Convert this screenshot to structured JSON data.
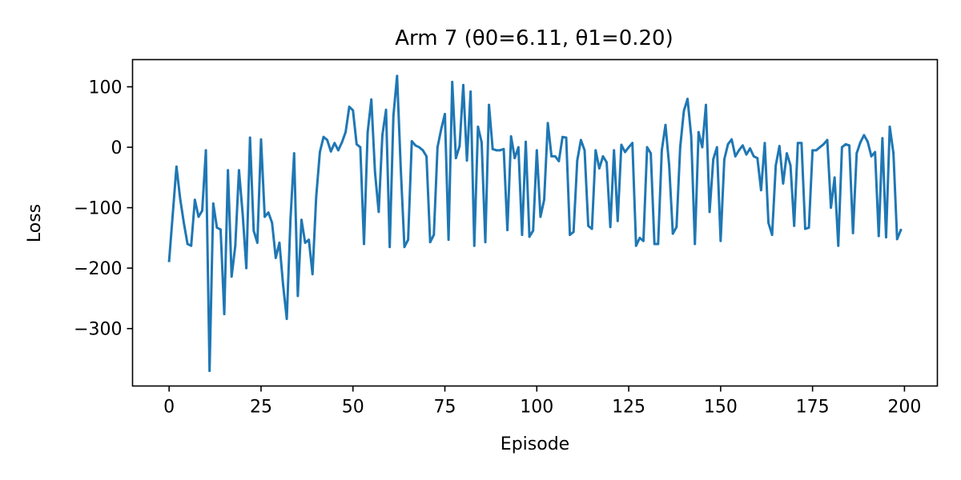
{
  "chart_data": {
    "type": "line",
    "title": "Arm 7 (θ0=6.11, θ1=0.20)",
    "xlabel": "Episode",
    "ylabel": "Loss",
    "xlim": [
      -9.95,
      208.95
    ],
    "ylim": [
      -395,
      145
    ],
    "xticks": [
      0,
      25,
      50,
      75,
      100,
      125,
      150,
      175,
      200
    ],
    "yticks": [
      100,
      0,
      -100,
      -200,
      -300
    ],
    "ytick_labels": [
      "100",
      "0",
      "−100",
      "−200",
      "−300"
    ],
    "grid": false,
    "color": "#1f77b4",
    "series": [
      {
        "x": [
          0,
          1,
          2,
          3,
          4,
          5,
          6,
          7,
          8,
          9,
          10,
          11,
          12,
          13,
          14,
          15,
          16,
          17,
          18,
          19,
          20,
          21,
          22,
          23,
          24,
          25,
          26,
          27,
          28,
          29,
          30,
          31,
          32,
          33,
          34,
          35,
          36,
          37,
          38,
          39,
          40,
          41,
          42,
          43,
          44,
          45,
          46,
          47,
          48,
          49,
          50,
          51,
          52,
          53,
          54,
          55,
          56,
          57,
          58,
          59,
          60,
          61,
          62,
          63,
          64,
          65,
          66,
          67,
          68,
          69,
          70,
          71,
          72,
          73,
          74,
          75,
          76,
          77,
          78,
          79,
          80,
          81,
          82,
          83,
          84,
          85,
          86,
          87,
          88,
          89,
          90,
          91,
          92,
          93,
          94,
          95,
          96,
          97,
          98,
          99,
          100,
          101,
          102,
          103,
          104,
          105,
          106,
          107,
          108,
          109,
          110,
          111,
          112,
          113,
          114,
          115,
          116,
          117,
          118,
          119,
          120,
          121,
          122,
          123,
          124,
          125,
          126,
          127,
          128,
          129,
          130,
          131,
          132,
          133,
          134,
          135,
          136,
          137,
          138,
          139,
          140,
          141,
          142,
          143,
          144,
          145,
          146,
          147,
          148,
          149,
          150,
          151,
          152,
          153,
          154,
          155,
          156,
          157,
          158,
          159,
          160,
          161,
          162,
          163,
          164,
          165,
          166,
          167,
          168,
          169,
          170,
          171,
          172,
          173,
          174,
          175,
          176,
          177,
          178,
          179,
          180,
          181,
          182,
          183,
          184,
          185,
          186,
          187,
          188,
          189,
          190,
          191,
          192,
          193,
          194,
          195,
          196,
          197,
          198,
          199
        ],
        "values": [
          -188,
          -110,
          -32,
          -85,
          -125,
          -160,
          -163,
          -87,
          -115,
          -105,
          -5,
          -370,
          -93,
          -133,
          -136,
          -276,
          -38,
          -214,
          -163,
          -38,
          -110,
          -200,
          16,
          -138,
          -158,
          13,
          -115,
          -108,
          -125,
          -183,
          -158,
          -228,
          -284,
          -120,
          -10,
          -246,
          -120,
          -158,
          -153,
          -210,
          -82,
          -8,
          17,
          12,
          -7,
          7,
          -5,
          8,
          25,
          67,
          61,
          5,
          0,
          -160,
          25,
          79,
          -42,
          -107,
          20,
          62,
          -165,
          52,
          118,
          -35,
          -165,
          -153,
          10,
          3,
          0,
          -5,
          -15,
          -157,
          -145,
          0,
          30,
          55,
          -153,
          108,
          -18,
          2,
          103,
          -22,
          92,
          -163,
          34,
          8,
          -157,
          70,
          -3,
          -5,
          -5,
          -3,
          -137,
          18,
          -18,
          0,
          -145,
          9,
          -148,
          -138,
          -5,
          -115,
          -87,
          40,
          -15,
          -15,
          -23,
          17,
          16,
          -145,
          -140,
          -22,
          12,
          -5,
          -130,
          -135,
          -5,
          -35,
          -15,
          -25,
          -132,
          -5,
          -122,
          4,
          -8,
          0,
          7,
          -163,
          -150,
          -155,
          0,
          -10,
          -160,
          -160,
          -5,
          37,
          -30,
          -143,
          -132,
          0,
          60,
          80,
          18,
          -160,
          25,
          0,
          70,
          -107,
          -20,
          0,
          -155,
          -20,
          5,
          13,
          -15,
          -5,
          3,
          -12,
          -2,
          -15,
          -18,
          -71,
          7,
          -125,
          -145,
          -30,
          2,
          -60,
          -10,
          -30,
          -130,
          7,
          7,
          -135,
          -133,
          -5,
          -5,
          0,
          5,
          12,
          -100,
          -50,
          -163,
          0,
          5,
          3,
          -142,
          -10,
          8,
          20,
          9,
          -15,
          -8,
          -147,
          15,
          -149,
          34,
          -10,
          -152,
          -137
        ]
      }
    ]
  }
}
